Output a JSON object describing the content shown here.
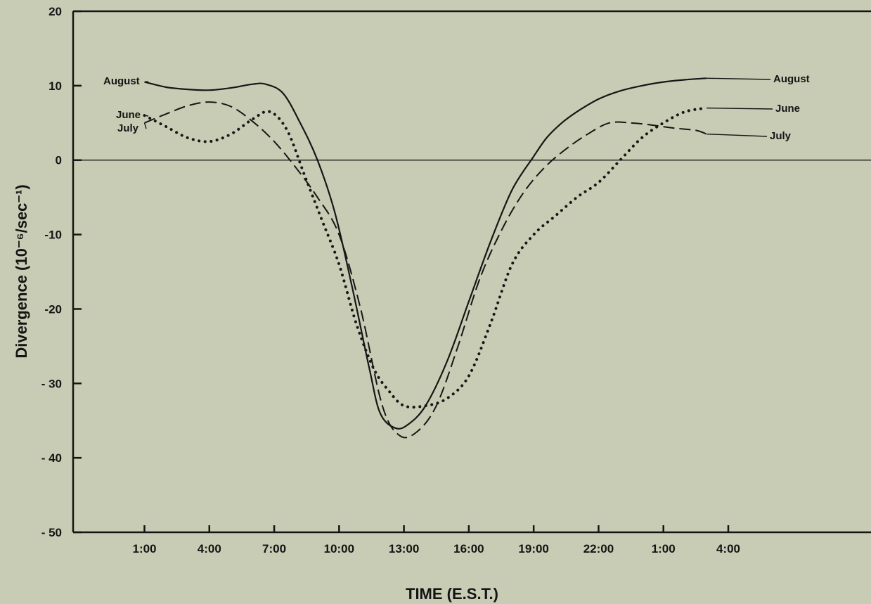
{
  "chart_data": {
    "type": "line",
    "title": "",
    "xlabel": "TIME (E.S.T.)",
    "ylabel": "Divergence (10⁻⁶/sec⁻¹)",
    "ylim": [
      -50,
      20
    ],
    "xlim": [
      -2.3,
      34.6
    ],
    "y_ticks": [
      {
        "value": 20,
        "label": "20"
      },
      {
        "value": 10,
        "label": "10"
      },
      {
        "value": 0,
        "label": "0"
      },
      {
        "value": -10,
        "label": "-10"
      },
      {
        "value": -20,
        "label": "-20"
      },
      {
        "value": -30,
        "label": "- 30"
      },
      {
        "value": -40,
        "label": "- 40"
      },
      {
        "value": -50,
        "label": "- 50"
      }
    ],
    "x_ticks": [
      {
        "value": 1,
        "label": "1:00"
      },
      {
        "value": 4,
        "label": "4:00"
      },
      {
        "value": 7,
        "label": "7:00"
      },
      {
        "value": 10,
        "label": "10:00"
      },
      {
        "value": 13,
        "label": "13:00"
      },
      {
        "value": 16,
        "label": "16:00"
      },
      {
        "value": 19,
        "label": "19:00"
      },
      {
        "value": 22,
        "label": "22:00"
      },
      {
        "value": 25,
        "label": "1:00"
      },
      {
        "value": 28,
        "label": "4:00"
      }
    ],
    "zero_line": 0,
    "grid": false,
    "series": [
      {
        "name": "August",
        "style": "solid",
        "x": [
          1,
          2,
          3,
          4,
          5,
          6,
          6.6,
          7.4,
          8.2,
          9,
          9.8,
          10.6,
          11.4,
          11.9,
          12.6,
          13.2,
          14,
          15,
          16,
          17,
          18,
          19,
          19.6,
          20.3,
          21,
          22,
          23,
          24,
          25,
          26,
          27
        ],
        "y": [
          10.5,
          9.8,
          9.5,
          9.4,
          9.7,
          10.2,
          10.2,
          9,
          5,
          0,
          -7,
          -17,
          -28,
          -34,
          -36,
          -35.5,
          -33,
          -27,
          -19,
          -11,
          -4,
          0.5,
          3,
          5,
          6.5,
          8.2,
          9.3,
          10,
          10.5,
          10.8,
          11
        ]
      },
      {
        "name": "June",
        "style": "dotted",
        "x": [
          1,
          2,
          3,
          4,
          5,
          6,
          6.8,
          7.6,
          8.4,
          9.2,
          10,
          10.8,
          11.6,
          12.3,
          13,
          14,
          15,
          16,
          17,
          18,
          19,
          20,
          21,
          22,
          23,
          24,
          25,
          26,
          27
        ],
        "y": [
          6,
          4.5,
          3,
          2.5,
          3.5,
          5.5,
          6.5,
          4,
          -2,
          -8,
          -14,
          -22,
          -28,
          -31,
          -33,
          -33,
          -32,
          -29,
          -22,
          -14,
          -10,
          -7.5,
          -5,
          -3,
          0,
          3,
          5,
          6.5,
          7
        ]
      },
      {
        "name": "July",
        "style": "dashed",
        "x": [
          1,
          2,
          3,
          4,
          5,
          6,
          7,
          8,
          9,
          10,
          11,
          12,
          12.8,
          13.6,
          14.5,
          15.5,
          16.5,
          17.5,
          18.5,
          19.5,
          20.5,
          21.5,
          22.5,
          23.5,
          24.5,
          25.5,
          26.5,
          27
        ],
        "y": [
          5,
          6.2,
          7.3,
          7.8,
          7.2,
          5.2,
          2.5,
          -1,
          -5,
          -10,
          -20,
          -33,
          -37,
          -36.5,
          -33,
          -25,
          -16,
          -9.5,
          -4.5,
          -1,
          1.5,
          3.5,
          5,
          5,
          4.7,
          4.3,
          4,
          3.5
        ]
      }
    ],
    "series_labels": [
      {
        "series": "August",
        "side": "left",
        "text": "August"
      },
      {
        "series": "August",
        "side": "right",
        "text": "August"
      },
      {
        "series": "June",
        "side": "left",
        "text": "June"
      },
      {
        "series": "June",
        "side": "right",
        "text": "June"
      },
      {
        "series": "July",
        "side": "left",
        "text": "July"
      },
      {
        "series": "July",
        "side": "right",
        "text": "July"
      }
    ]
  }
}
